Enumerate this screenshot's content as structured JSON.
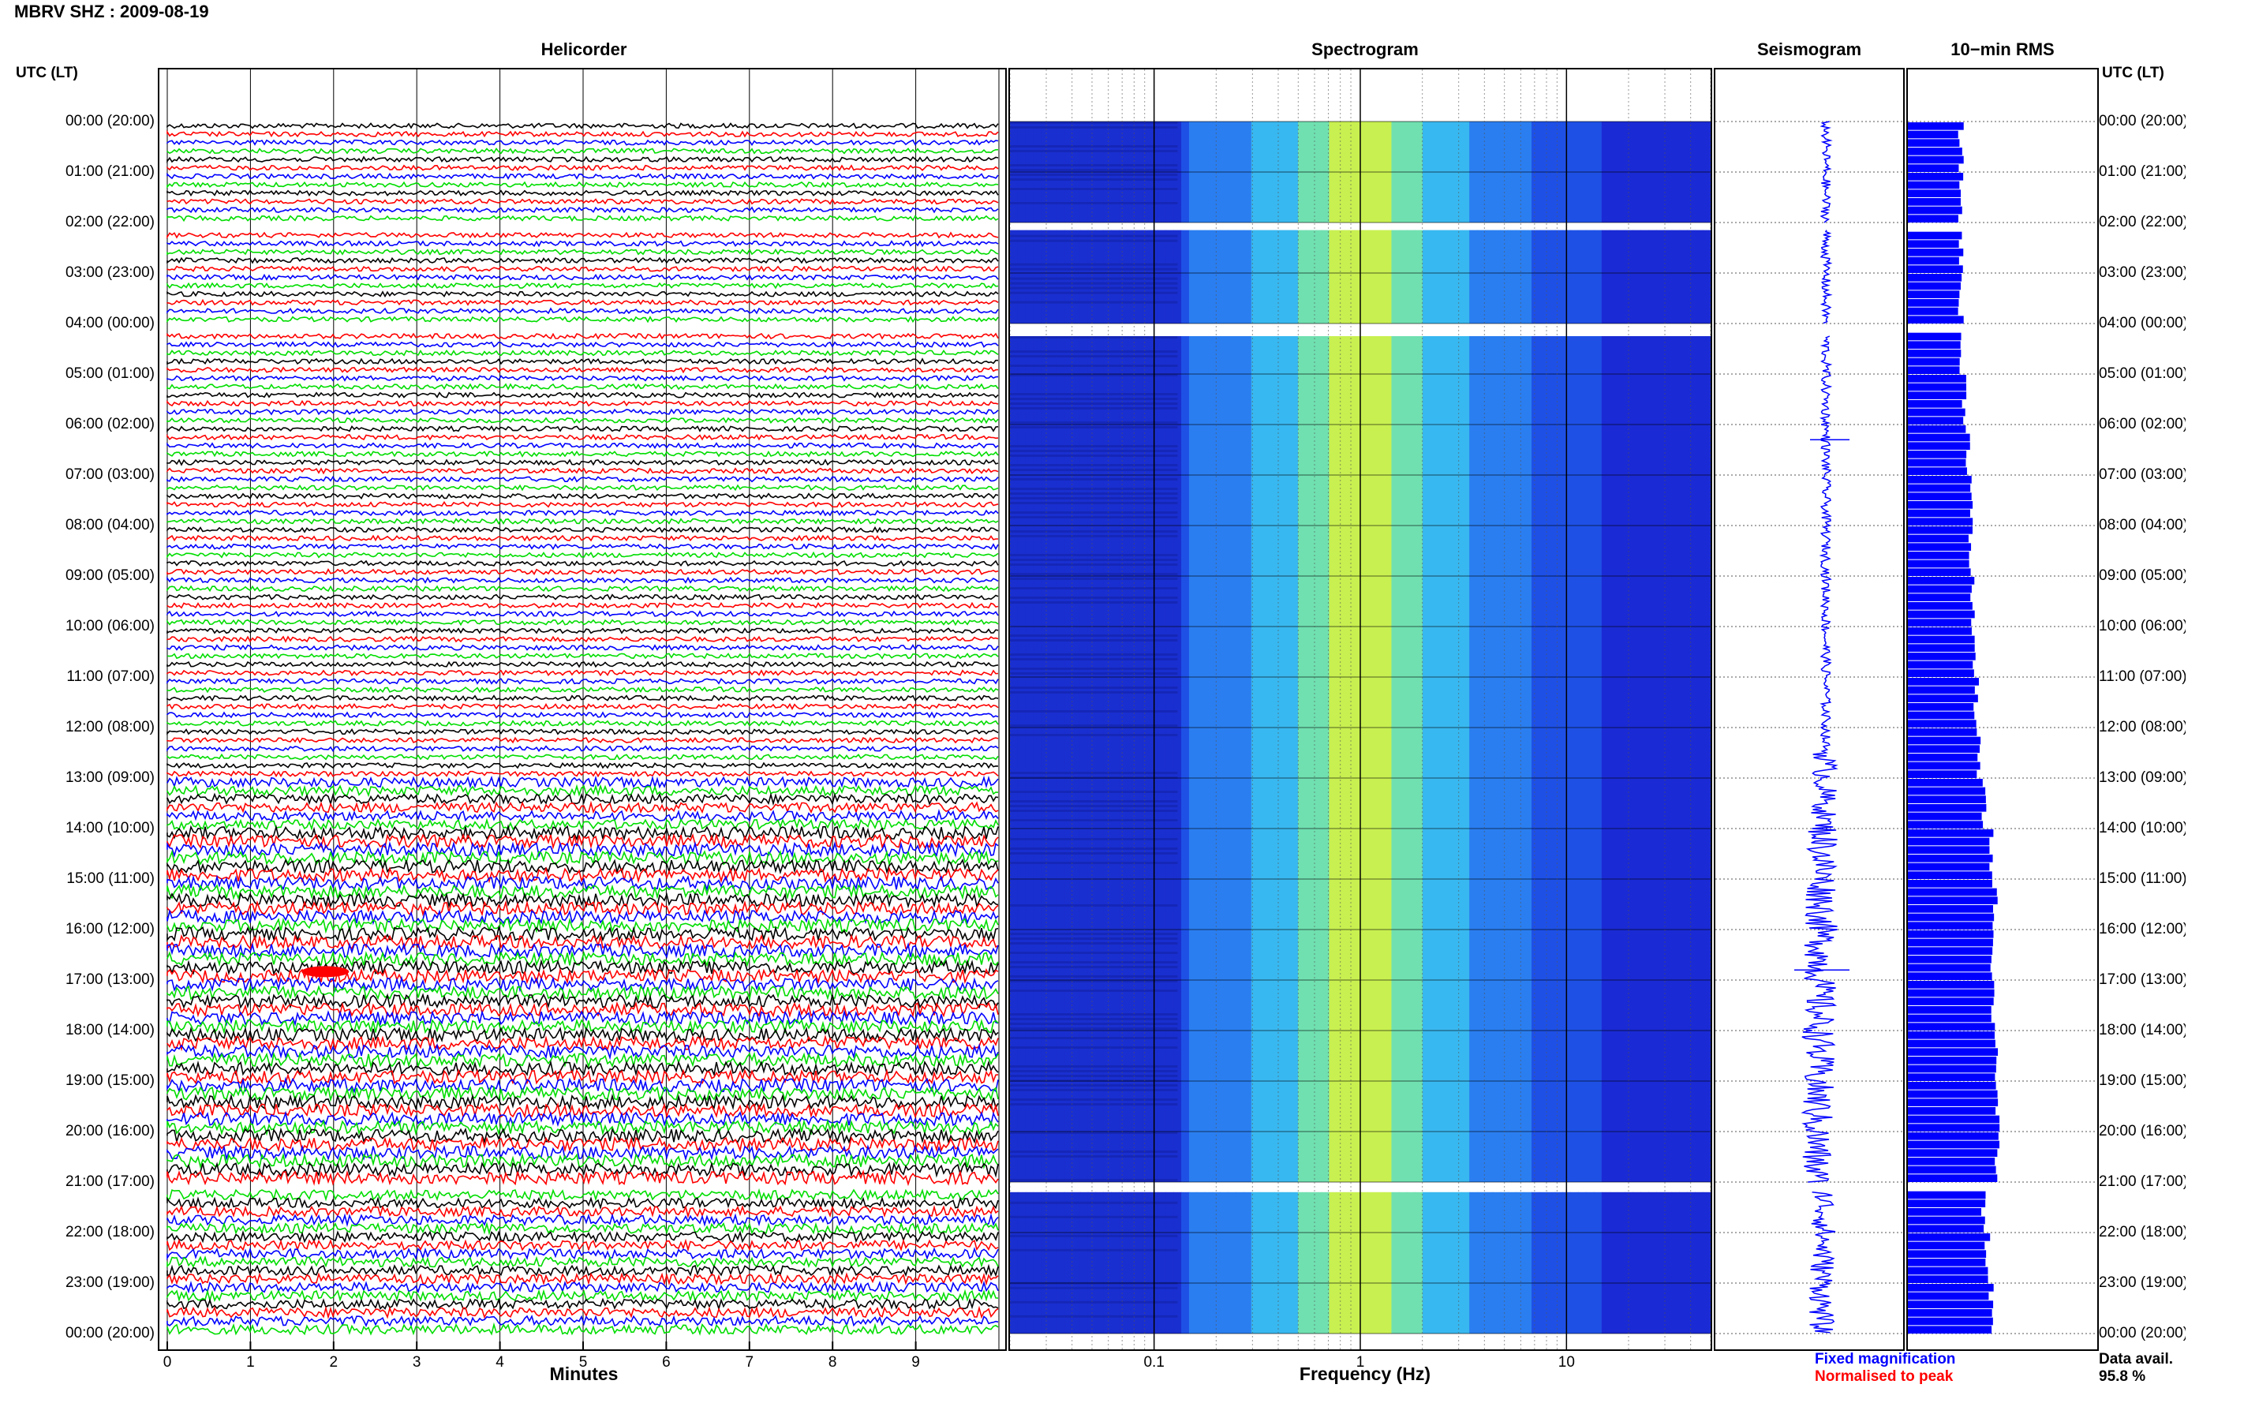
{
  "page": {
    "title": "MBRV SHZ : 2009-08-19"
  },
  "panels": {
    "helicorder": "Helicorder",
    "spectrogram": "Spectrogram",
    "seismogram": "Seismogram",
    "rms": "10−min RMS"
  },
  "side_header": {
    "left": "UTC (LT)",
    "right": "UTC (LT)"
  },
  "time_labels": [
    "00:00 (20:00)",
    "01:00 (21:00)",
    "02:00 (22:00)",
    "03:00 (23:00)",
    "04:00 (00:00)",
    "05:00 (01:00)",
    "06:00 (02:00)",
    "07:00 (03:00)",
    "08:00 (04:00)",
    "09:00 (05:00)",
    "10:00 (06:00)",
    "11:00 (07:00)",
    "12:00 (08:00)",
    "13:00 (09:00)",
    "14:00 (10:00)",
    "15:00 (11:00)",
    "16:00 (12:00)",
    "17:00 (13:00)",
    "18:00 (14:00)",
    "19:00 (15:00)",
    "20:00 (16:00)",
    "21:00 (17:00)",
    "22:00 (18:00)",
    "23:00 (19:00)",
    "00:00 (20:00)"
  ],
  "chart_data": [
    {
      "type": "line",
      "panel": "Helicorder",
      "xlabel": "Minutes",
      "x_ticks": [
        "0",
        "1",
        "2",
        "3",
        "4",
        "5",
        "6",
        "7",
        "8",
        "9"
      ],
      "xlim": [
        0,
        10
      ],
      "trace_colors": [
        "#000000",
        "#ff0000",
        "#0000ff",
        "#00dd00"
      ],
      "rows_per_hour": 6,
      "hours": 24,
      "data_gaps_utc": [
        [
          "02:00",
          "02:00"
        ],
        [
          "04:00",
          "04:10"
        ],
        [
          "21:00",
          "21:10"
        ]
      ],
      "notable_event": {
        "time_utc": "16:50",
        "minute": 1.9
      }
    },
    {
      "type": "heatmap",
      "panel": "Spectrogram",
      "xlabel": "Frequency (Hz)",
      "x_scale": "log",
      "x_ticks": [
        "0.1",
        "1",
        "10"
      ],
      "xlim": [
        0.02,
        50
      ],
      "peak_frequency_hz": 1.0
    },
    {
      "type": "line",
      "panel": "Seismogram",
      "legend": [
        {
          "label": "Fixed magnification",
          "color": "#0000ff"
        },
        {
          "label": "Normalised to peak",
          "color": "#ff0000"
        }
      ]
    },
    {
      "type": "bar",
      "panel": "10-min RMS",
      "orientation": "horizontal",
      "color": "#0000ff",
      "hourly_relative_rms": [
        0.28,
        0.28,
        0.28,
        0.28,
        0.28,
        0.3,
        0.32,
        0.33,
        0.33,
        0.34,
        0.35,
        0.36,
        0.37,
        0.4,
        0.44,
        0.46,
        0.45,
        0.45,
        0.47,
        0.47,
        0.47,
        0.4,
        0.42,
        0.44
      ]
    }
  ],
  "footer": {
    "minutes_label": "Minutes",
    "frequency_label": "Frequency (Hz)",
    "legend_fixed": "Fixed magnification",
    "legend_normalised": "Normalised to peak",
    "data_avail_label": "Data avail.",
    "data_avail_value": "95.8 %"
  }
}
